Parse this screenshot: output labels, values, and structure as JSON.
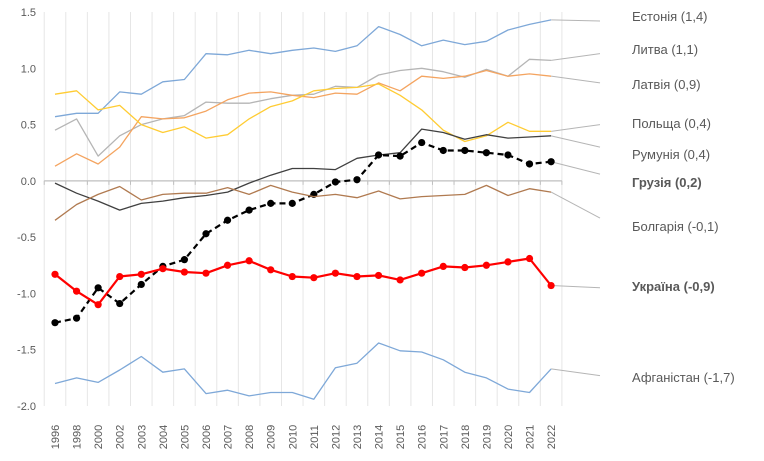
{
  "chart_data": {
    "type": "line",
    "title": "",
    "xlabel": "",
    "ylabel": "",
    "ylim": [
      -2.0,
      1.5
    ],
    "yticks": [
      {
        "value": 1.5,
        "label": "1.5"
      },
      {
        "value": 1.0,
        "label": "1.0"
      },
      {
        "value": 0.5,
        "label": "0.5"
      },
      {
        "value": 0.0,
        "label": "0.0"
      },
      {
        "value": -0.5,
        "label": "-0.5"
      },
      {
        "value": -1.0,
        "label": "-1.0"
      },
      {
        "value": -1.5,
        "label": "-1.5"
      },
      {
        "value": -2.0,
        "label": "-2.0"
      }
    ],
    "grid": "vertical",
    "x": [
      "1996",
      "1998",
      "2000",
      "2002",
      "2003",
      "2004",
      "2005",
      "2006",
      "2007",
      "2008",
      "2009",
      "2010",
      "2011",
      "2012",
      "2013",
      "2014",
      "2015",
      "2016",
      "2017",
      "2018",
      "2019",
      "2020",
      "2021",
      "2022"
    ],
    "series": [
      {
        "name": "Естонія (1,4)",
        "color": "#7ea8d8",
        "style": "thin",
        "bold": false,
        "values": [
          0.57,
          0.6,
          0.6,
          0.79,
          0.77,
          0.88,
          0.9,
          1.13,
          1.12,
          1.16,
          1.13,
          1.16,
          1.18,
          1.15,
          1.2,
          1.37,
          1.3,
          1.2,
          1.25,
          1.21,
          1.24,
          1.34,
          1.39,
          1.43
        ]
      },
      {
        "name": "Литва (1,1)",
        "color": "#b5b5b5",
        "style": "thin",
        "bold": false,
        "values": [
          0.45,
          0.55,
          0.22,
          0.4,
          0.5,
          0.55,
          0.58,
          0.7,
          0.69,
          0.69,
          0.73,
          0.76,
          0.77,
          0.84,
          0.83,
          0.94,
          0.98,
          1.0,
          0.97,
          0.92,
          0.99,
          0.93,
          1.08,
          1.07
        ]
      },
      {
        "name": "Латвія (0,9)",
        "color": "#f4a460",
        "style": "thin",
        "bold": false,
        "values": [
          0.13,
          0.24,
          0.15,
          0.3,
          0.57,
          0.55,
          0.56,
          0.62,
          0.72,
          0.78,
          0.79,
          0.76,
          0.74,
          0.78,
          0.77,
          0.87,
          0.8,
          0.93,
          0.91,
          0.93,
          0.98,
          0.93,
          0.95,
          0.93
        ]
      },
      {
        "name": "Польща (0,4)",
        "color": "#ffcc33",
        "style": "thin",
        "bold": false,
        "values": [
          0.77,
          0.8,
          0.63,
          0.67,
          0.5,
          0.43,
          0.48,
          0.38,
          0.41,
          0.55,
          0.66,
          0.71,
          0.8,
          0.82,
          0.83,
          0.86,
          0.76,
          0.63,
          0.45,
          0.35,
          0.4,
          0.52,
          0.44,
          0.44
        ]
      },
      {
        "name": "Румунія (0,4)",
        "color": "#404040",
        "style": "thin",
        "bold": false,
        "values": [
          -0.02,
          -0.11,
          -0.18,
          -0.26,
          -0.2,
          -0.18,
          -0.15,
          -0.13,
          -0.1,
          -0.02,
          0.05,
          0.11,
          0.11,
          0.1,
          0.2,
          0.23,
          0.25,
          0.46,
          0.43,
          0.37,
          0.41,
          0.38,
          0.39,
          0.4
        ]
      },
      {
        "name": "Грузія (0,2)",
        "color": "#000000",
        "style": "dashed-markers",
        "bold": true,
        "values": [
          -1.26,
          -1.22,
          -0.95,
          -1.09,
          -0.92,
          -0.76,
          -0.7,
          -0.47,
          -0.35,
          -0.26,
          -0.2,
          -0.2,
          -0.12,
          -0.01,
          0.01,
          0.23,
          0.22,
          0.34,
          0.27,
          0.27,
          0.25,
          0.23,
          0.15,
          0.17
        ]
      },
      {
        "name": "Болгарія (-0,1)",
        "color": "#b07a50",
        "style": "thin",
        "bold": false,
        "values": [
          -0.35,
          -0.21,
          -0.12,
          -0.05,
          -0.17,
          -0.12,
          -0.11,
          -0.11,
          -0.06,
          -0.12,
          -0.04,
          -0.1,
          -0.14,
          -0.12,
          -0.15,
          -0.09,
          -0.16,
          -0.14,
          -0.13,
          -0.12,
          -0.04,
          -0.13,
          -0.07,
          -0.1
        ]
      },
      {
        "name": "Україна (-0,9)",
        "color": "#ff0000",
        "style": "solid-markers",
        "bold": true,
        "values": [
          -0.83,
          -0.98,
          -1.1,
          -0.85,
          -0.83,
          -0.78,
          -0.81,
          -0.82,
          -0.75,
          -0.71,
          -0.79,
          -0.85,
          -0.86,
          -0.82,
          -0.85,
          -0.84,
          -0.88,
          -0.82,
          -0.76,
          -0.77,
          -0.75,
          -0.72,
          -0.69,
          -0.93
        ]
      },
      {
        "name": "Афганістан (-1,7)",
        "color": "#7ea8d8",
        "style": "thin",
        "bold": false,
        "values": [
          -1.8,
          -1.75,
          -1.79,
          -1.68,
          -1.56,
          -1.7,
          -1.67,
          -1.89,
          -1.86,
          -1.91,
          -1.88,
          -1.88,
          -1.94,
          -1.66,
          -1.62,
          -1.44,
          -1.51,
          -1.52,
          -1.59,
          -1.7,
          -1.75,
          -1.85,
          -1.88,
          -1.67
        ]
      }
    ],
    "connectors": [
      {
        "color": "#b5b5b5",
        "target": 1.42
      },
      {
        "color": "#b5b5b5",
        "target": 1.13
      },
      {
        "color": "#b5b5b5",
        "target": 0.87
      },
      {
        "color": "#b5b5b5",
        "target": 0.5
      },
      {
        "color": "#b5b5b5",
        "target": 0.3
      },
      {
        "color": "#b5b5b5",
        "target": 0.06
      },
      {
        "color": "#b5b5b5",
        "target": -0.33
      },
      {
        "color": "#b5b5b5",
        "target": -0.95
      },
      {
        "color": "#b5b5b5",
        "target": -1.73
      }
    ]
  }
}
